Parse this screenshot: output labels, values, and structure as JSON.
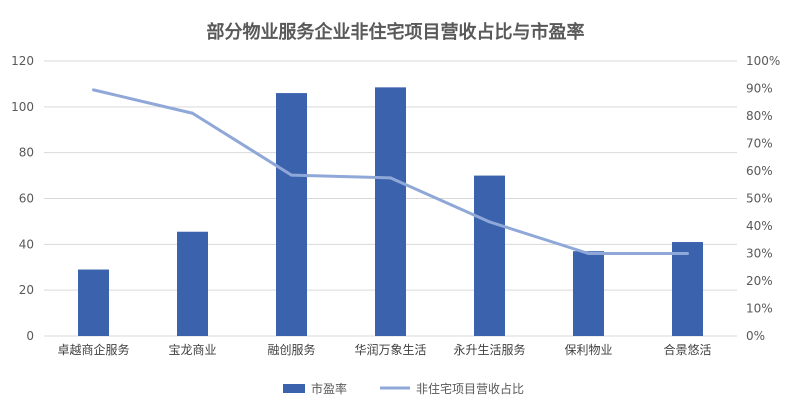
{
  "chart_data": {
    "type": "bar",
    "title": "部分物业服务企业非住宅项目营收占比与市盈率",
    "categories": [
      "卓越商企服务",
      "宝龙商业",
      "融创服务",
      "华润万象生活",
      "永升生活服务",
      "保利物业",
      "合景悠活"
    ],
    "series": [
      {
        "name": "市盈率",
        "type": "bar",
        "axis": "left",
        "values": [
          29,
          45.5,
          106,
          108.5,
          70,
          37,
          41
        ]
      },
      {
        "name": "非住宅项目营收占比",
        "type": "line",
        "axis": "right",
        "values": [
          0.895,
          0.81,
          0.585,
          0.575,
          0.415,
          0.3,
          0.3
        ]
      }
    ],
    "ylim_left": [
      0,
      120
    ],
    "yticks_left": [
      "0",
      "20",
      "40",
      "60",
      "80",
      "100",
      "120"
    ],
    "ylim_right": [
      0,
      1
    ],
    "yticks_right": [
      "0%",
      "10%",
      "20%",
      "30%",
      "40%",
      "50%",
      "60%",
      "70%",
      "80%",
      "90%",
      "100%"
    ],
    "grid": true,
    "legend_position": "bottom",
    "colors": {
      "bar": "#3a62ad",
      "line": "#8fa8d8",
      "grid": "#d9d9d9",
      "axis_text": "#595959"
    }
  }
}
